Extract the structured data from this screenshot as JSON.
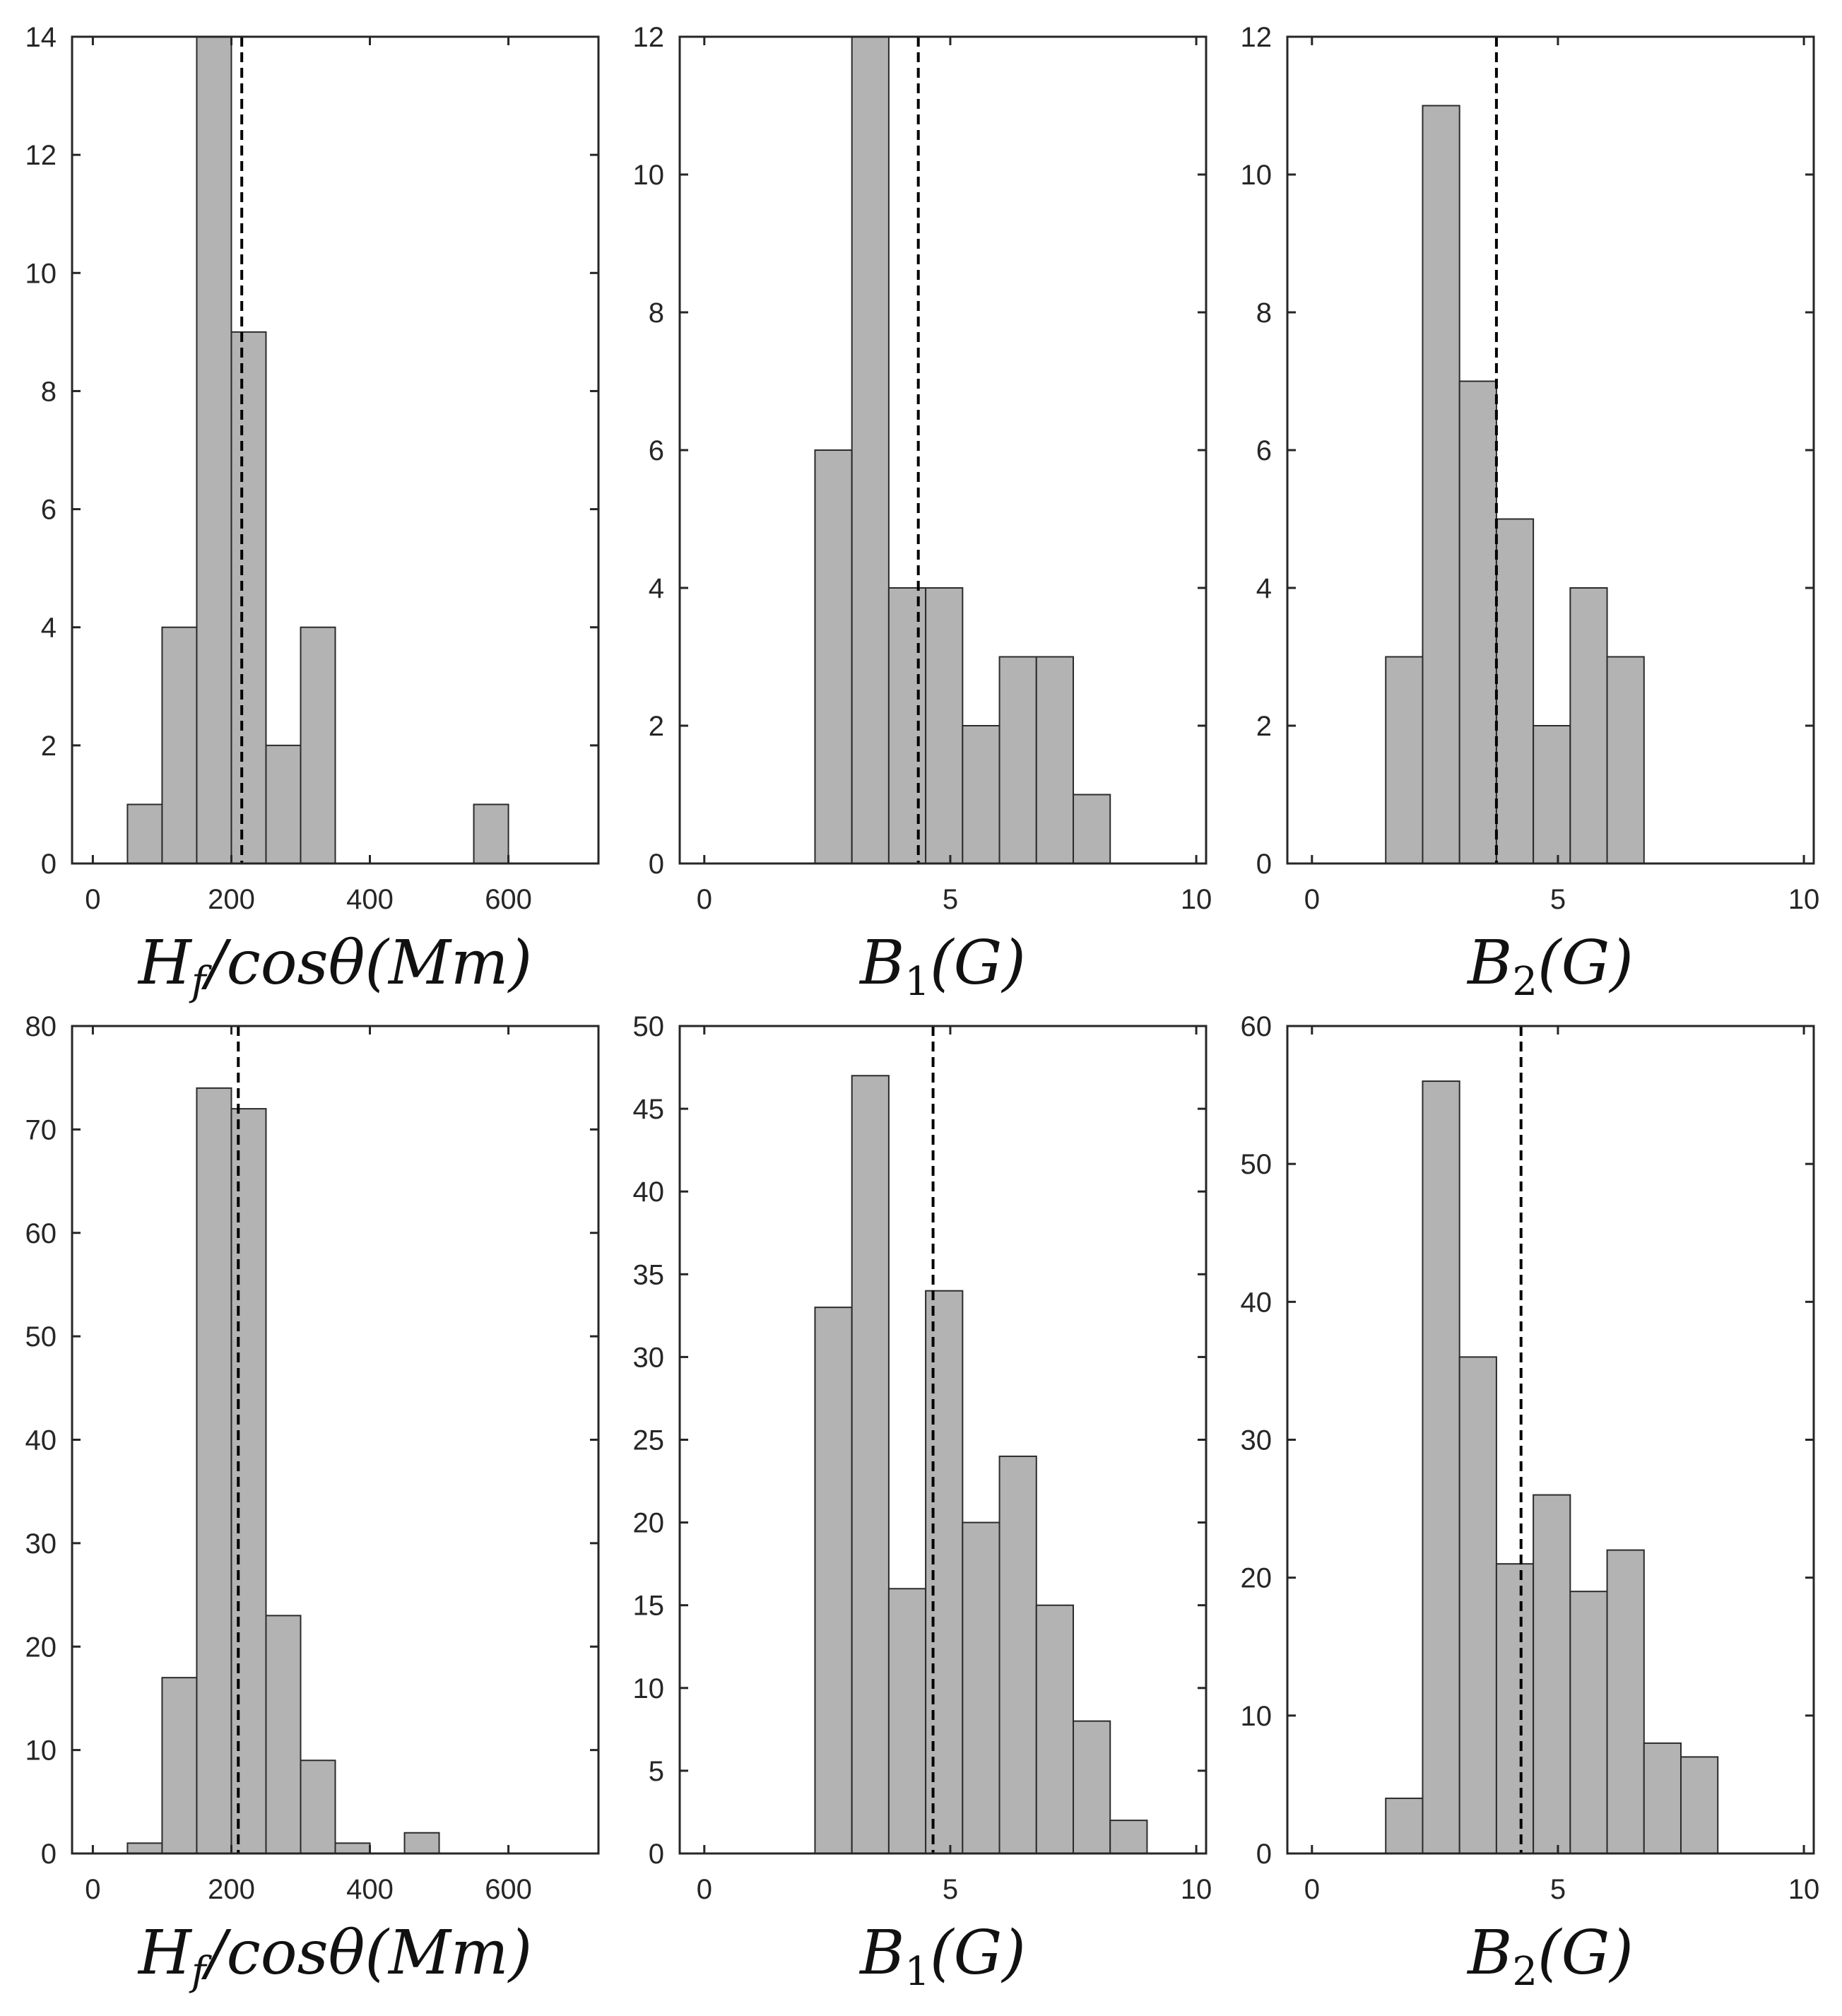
{
  "colors": {
    "bar_fill": "#b3b3b3",
    "bar_edge": "#2b2b2b",
    "axes": "#262626",
    "mean_line": "#000000",
    "background": "#ffffff"
  },
  "chart_data": [
    {
      "type": "bar",
      "xlabel": "H_f/cosθ(Mm)",
      "xlim": [
        -30,
        730
      ],
      "ylim": [
        0,
        14
      ],
      "xticks": [
        0,
        200,
        400,
        600
      ],
      "yticks": [
        0,
        2,
        4,
        6,
        8,
        10,
        12,
        14
      ],
      "bin_width": 50,
      "bins": [
        [
          50,
          1
        ],
        [
          100,
          4
        ],
        [
          150,
          14
        ],
        [
          200,
          9
        ],
        [
          250,
          2
        ],
        [
          300,
          4
        ],
        [
          550,
          1
        ]
      ],
      "mean": 215
    },
    {
      "type": "bar",
      "xlabel": "B_1(G)",
      "xlim": [
        -0.5,
        10.2
      ],
      "ylim": [
        0,
        12
      ],
      "xticks": [
        0,
        5,
        10
      ],
      "yticks": [
        0,
        2,
        4,
        6,
        8,
        10,
        12
      ],
      "bin_width": 0.75,
      "bins": [
        [
          2.25,
          6
        ],
        [
          3.0,
          12
        ],
        [
          3.75,
          4
        ],
        [
          4.5,
          4
        ],
        [
          5.25,
          2
        ],
        [
          6.0,
          3
        ],
        [
          6.75,
          3
        ],
        [
          7.5,
          1
        ]
      ],
      "mean": 4.35
    },
    {
      "type": "bar",
      "xlabel": "B_2(G)",
      "xlim": [
        -0.5,
        10.2
      ],
      "ylim": [
        0,
        12
      ],
      "xticks": [
        0,
        5,
        10
      ],
      "yticks": [
        0,
        2,
        4,
        6,
        8,
        10,
        12
      ],
      "bin_width": 0.75,
      "bins": [
        [
          1.5,
          3
        ],
        [
          2.25,
          11
        ],
        [
          3.0,
          7
        ],
        [
          3.75,
          5
        ],
        [
          4.5,
          2
        ],
        [
          5.25,
          4
        ],
        [
          6.0,
          3
        ]
      ],
      "mean": 3.75
    },
    {
      "type": "bar",
      "xlabel": "H_f/cosθ(Mm)",
      "xlim": [
        -30,
        730
      ],
      "ylim": [
        0,
        80
      ],
      "xticks": [
        0,
        200,
        400,
        600
      ],
      "yticks": [
        0,
        10,
        20,
        30,
        40,
        50,
        60,
        70,
        80
      ],
      "bin_width": 50,
      "bins": [
        [
          50,
          1
        ],
        [
          100,
          17
        ],
        [
          150,
          74
        ],
        [
          200,
          72
        ],
        [
          250,
          23
        ],
        [
          300,
          9
        ],
        [
          350,
          1
        ],
        [
          450,
          2
        ]
      ],
      "mean": 210
    },
    {
      "type": "bar",
      "xlabel": "B_1(G)",
      "xlim": [
        -0.5,
        10.2
      ],
      "ylim": [
        0,
        50
      ],
      "xticks": [
        0,
        5,
        10
      ],
      "yticks": [
        0,
        5,
        10,
        15,
        20,
        25,
        30,
        35,
        40,
        45,
        50
      ],
      "bin_width": 0.75,
      "bins": [
        [
          2.25,
          33
        ],
        [
          3.0,
          47
        ],
        [
          3.75,
          16
        ],
        [
          4.5,
          34
        ],
        [
          5.25,
          20
        ],
        [
          6.0,
          24
        ],
        [
          6.75,
          15
        ],
        [
          7.5,
          8
        ],
        [
          8.25,
          2
        ]
      ],
      "mean": 4.65
    },
    {
      "type": "bar",
      "xlabel": "B_2(G)",
      "xlim": [
        -0.5,
        10.2
      ],
      "ylim": [
        0,
        60
      ],
      "xticks": [
        0,
        5,
        10
      ],
      "yticks": [
        0,
        10,
        20,
        30,
        40,
        50,
        60
      ],
      "bin_width": 0.75,
      "bins": [
        [
          1.5,
          4
        ],
        [
          2.25,
          56
        ],
        [
          3.0,
          36
        ],
        [
          3.75,
          21
        ],
        [
          4.5,
          26
        ],
        [
          5.25,
          19
        ],
        [
          6.0,
          22
        ],
        [
          6.75,
          8
        ],
        [
          7.5,
          7
        ]
      ],
      "mean": 4.25
    }
  ]
}
